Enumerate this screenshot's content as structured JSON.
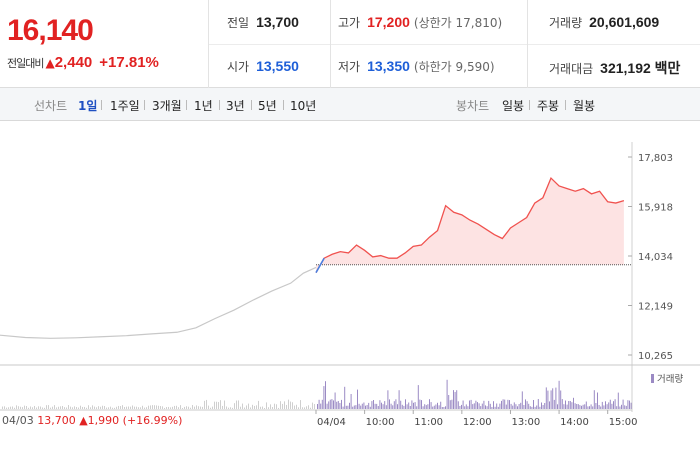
{
  "quote": {
    "price": "16,140",
    "change_label": "전일대비",
    "change_amount": "2,440",
    "change_percent": "+17.81%",
    "colors": {
      "up": "#e12222",
      "down": "#1e5fd8"
    }
  },
  "stats": {
    "prev_close": {
      "label": "전일",
      "value": "13,700"
    },
    "open": {
      "label": "시가",
      "value": "13,550"
    },
    "high": {
      "label": "고가",
      "value": "17,200",
      "sub": "(상한가 17,810)"
    },
    "low": {
      "label": "저가",
      "value": "13,350",
      "sub": "(하한가 9,590)"
    },
    "volume": {
      "label": "거래량",
      "value": "20,601,609"
    },
    "turnover": {
      "label": "거래대금",
      "value": "321,192 백만"
    }
  },
  "tabs": {
    "line_chart_label": "선차트",
    "line_items": [
      "1일",
      "1주일",
      "3개월",
      "1년",
      "3년",
      "5년",
      "10년"
    ],
    "active_line_item": "1일",
    "candle_chart_label": "봉차트",
    "candle_items": [
      "일봉",
      "주봉",
      "월봉"
    ]
  },
  "chart": {
    "y_ticks": [
      "17,803",
      "15,918",
      "14,034",
      "12,149",
      "10,265"
    ],
    "x_ticks": [
      "04/04",
      "10:00",
      "11:00",
      "12:00",
      "13:00",
      "14:00",
      "15:00"
    ],
    "volume_legend": "거래량",
    "prev_day": {
      "date": "04/03",
      "price": "13,700",
      "change": "1,990",
      "percent": "(+16.99%)"
    },
    "colors": {
      "today_line": "#f0524f",
      "today_fill": "#fde3e3",
      "prev_line": "#c8c8c8",
      "volume_today": "#9b8ac4",
      "volume_prev": "#cfcfcf",
      "baseline": "#555555",
      "open_marker": "#4a7fe0"
    }
  },
  "chart_data": {
    "type": "line",
    "y_range": [
      10265,
      17803
    ],
    "baseline_value": 13700,
    "prev_day_series": {
      "x": [
        0,
        0.08,
        0.16,
        0.24,
        0.32,
        0.4,
        0.48,
        0.56,
        0.62,
        0.68,
        0.74,
        0.8,
        0.86,
        0.92,
        0.96,
        1.0
      ],
      "y": [
        11020,
        10930,
        10900,
        10920,
        10960,
        11000,
        11070,
        11130,
        11300,
        11650,
        11970,
        12350,
        12700,
        13000,
        13380,
        13600
      ]
    },
    "today_series": {
      "x": [
        "09:00",
        "09:10",
        "09:20",
        "09:30",
        "09:40",
        "09:50",
        "10:00",
        "10:10",
        "10:20",
        "10:30",
        "10:40",
        "10:50",
        "11:00",
        "11:10",
        "11:20",
        "11:30",
        "11:40",
        "11:50",
        "12:00",
        "12:10",
        "12:20",
        "12:30",
        "12:40",
        "12:50",
        "13:00",
        "13:10",
        "13:20",
        "13:30",
        "13:40",
        "13:50",
        "14:00",
        "14:10",
        "14:20",
        "14:30",
        "14:40",
        "14:50",
        "15:00",
        "15:10",
        "15:20"
      ],
      "y": [
        13400,
        13950,
        14100,
        14200,
        14150,
        14450,
        14250,
        14000,
        14050,
        13950,
        13950,
        14150,
        14400,
        14450,
        14750,
        15000,
        15950,
        15700,
        15600,
        15400,
        15250,
        15050,
        14850,
        14700,
        15100,
        15300,
        15500,
        16050,
        16250,
        17000,
        16700,
        16600,
        16500,
        16600,
        16400,
        16500,
        16100,
        16050,
        16140
      ]
    }
  }
}
